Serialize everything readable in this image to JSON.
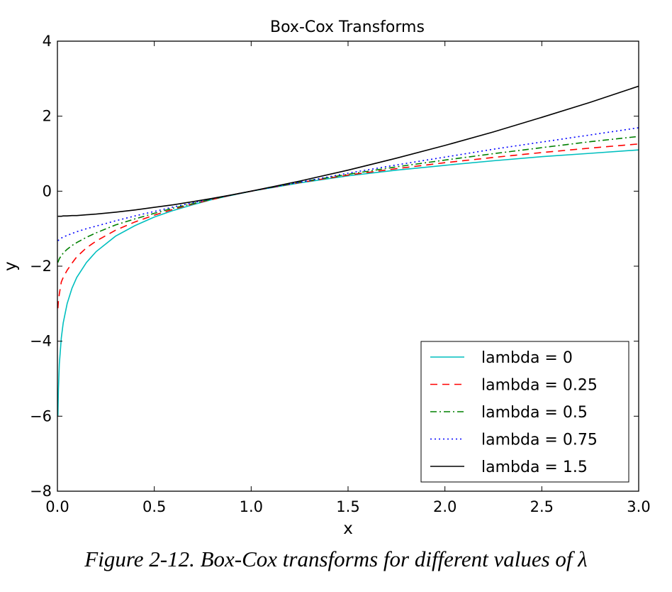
{
  "colors": {
    "lambda_0": "#00BFBF",
    "lambda_0_25": "#FF0000",
    "lambda_0_5": "#008000",
    "lambda_0_75": "#0000FF",
    "lambda_1_5": "#000000"
  },
  "caption": "Figure 2-12. Box-Cox transforms for different values of λ",
  "chart_data": {
    "type": "line",
    "title": "Box-Cox Transforms",
    "xlabel": "x",
    "ylabel": "y",
    "xlim": [
      0.0,
      3.0
    ],
    "ylim": [
      -8,
      4
    ],
    "xticks": [
      0.0,
      0.5,
      1.0,
      1.5,
      2.0,
      2.5,
      3.0
    ],
    "xtick_labels": [
      "0.0",
      "0.5",
      "1.0",
      "1.5",
      "2.0",
      "2.5",
      "3.0"
    ],
    "yticks": [
      -8,
      -6,
      -4,
      -2,
      0,
      2,
      4
    ],
    "ytick_labels": [
      "−8",
      "−6",
      "−4",
      "−2",
      "0",
      "2",
      "4"
    ],
    "grid": false,
    "legend_position": "lower-right",
    "x": [
      0.0025,
      0.005,
      0.01,
      0.02,
      0.03,
      0.05,
      0.075,
      0.1,
      0.15,
      0.2,
      0.3,
      0.4,
      0.5,
      0.6,
      0.7,
      0.8,
      0.9,
      1.0,
      1.25,
      1.5,
      1.75,
      2.0,
      2.25,
      2.5,
      2.75,
      3.0
    ],
    "series": [
      {
        "name": "lambda = 0",
        "style": "solid",
        "values": [
          -5.99,
          -5.3,
          -4.61,
          -3.91,
          -3.51,
          -3.0,
          -2.59,
          -2.3,
          -1.9,
          -1.61,
          -1.2,
          -0.92,
          -0.69,
          -0.51,
          -0.36,
          -0.22,
          -0.11,
          0.0,
          0.22,
          0.41,
          0.56,
          0.69,
          0.81,
          0.92,
          1.01,
          1.1
        ]
      },
      {
        "name": "lambda = 0.25",
        "style": "dashed",
        "values": [
          -3.12,
          -2.93,
          -2.74,
          -2.42,
          -2.3,
          -2.11,
          -1.92,
          -1.75,
          -1.51,
          -1.33,
          -1.04,
          -0.82,
          -0.64,
          -0.48,
          -0.34,
          -0.22,
          -0.1,
          0.0,
          0.23,
          0.43,
          0.6,
          0.76,
          0.9,
          1.03,
          1.15,
          1.26
        ]
      },
      {
        "name": "lambda = 0.5",
        "style": "dashdot",
        "values": [
          -1.9,
          -1.86,
          -1.8,
          -1.72,
          -1.65,
          -1.55,
          -1.45,
          -1.37,
          -1.23,
          -1.11,
          -0.9,
          -0.74,
          -0.59,
          -0.45,
          -0.33,
          -0.21,
          -0.1,
          0.0,
          0.24,
          0.45,
          0.65,
          0.83,
          1.0,
          1.16,
          1.32,
          1.46
        ]
      },
      {
        "name": "lambda = 0.75",
        "style": "dotted",
        "values": [
          -1.32,
          -1.31,
          -1.29,
          -1.25,
          -1.22,
          -1.18,
          -1.13,
          -1.08,
          -1.0,
          -0.93,
          -0.79,
          -0.66,
          -0.54,
          -0.42,
          -0.31,
          -0.2,
          -0.1,
          0.0,
          0.24,
          0.48,
          0.7,
          0.91,
          1.12,
          1.31,
          1.5,
          1.69
        ]
      },
      {
        "name": "lambda = 1.5",
        "style": "solid",
        "values": [
          -0.67,
          -0.67,
          -0.67,
          -0.67,
          -0.66,
          -0.66,
          -0.65,
          -0.65,
          -0.63,
          -0.61,
          -0.56,
          -0.5,
          -0.43,
          -0.36,
          -0.28,
          -0.19,
          -0.1,
          0.0,
          0.27,
          0.56,
          0.88,
          1.22,
          1.58,
          1.97,
          2.37,
          2.8
        ]
      }
    ]
  }
}
